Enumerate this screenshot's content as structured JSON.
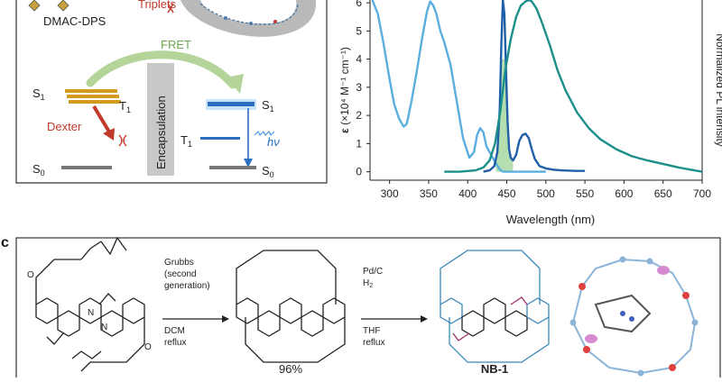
{
  "panel_a": {
    "compound_label": "DMAC-DPS",
    "triplets_label": "Triplets",
    "fret_label": "FRET",
    "dexter_label": "Dexter",
    "encapsulation_label": "Encapsulation",
    "hv_label": "hν",
    "levels": {
      "s1_left": "S",
      "s1_left_sub": "1",
      "t1_left": "T",
      "t1_left_sub": "1",
      "s0_left": "S",
      "s0_left_sub": "0",
      "s1_right": "S",
      "s1_right_sub": "1",
      "t1_right": "T",
      "t1_right_sub": "1",
      "s0_right": "S",
      "s0_right_sub": "0"
    }
  },
  "panel_b": {
    "chart_data": {
      "type": "line",
      "xlabel": "Wavelength (nm)",
      "ylabel_left": "ε (×10⁴ M⁻¹ cm⁻¹)",
      "ylabel_right": "Normalized PL intensity",
      "xlim": [
        275,
        700
      ],
      "ylim": [
        -0.3,
        6.1
      ],
      "x_ticks": [
        300,
        350,
        400,
        450,
        500,
        550,
        600,
        650,
        700
      ],
      "y_ticks": [
        0,
        1,
        2,
        3,
        4,
        5,
        6
      ],
      "series": [
        {
          "color": "#5aaee0",
          "x": [
            278,
            285,
            292,
            300,
            306,
            312,
            318,
            322,
            328,
            335,
            342,
            348,
            352,
            356,
            360,
            365,
            370,
            378,
            386,
            394,
            402,
            408,
            412,
            416,
            420,
            424,
            430,
            436,
            442,
            446,
            450,
            456,
            462,
            470,
            480,
            490,
            500
          ],
          "y": [
            6.1,
            5.6,
            4.6,
            3.3,
            2.4,
            1.9,
            1.6,
            1.7,
            2.5,
            3.6,
            4.8,
            5.7,
            6.05,
            5.9,
            5.6,
            5.0,
            4.6,
            3.8,
            2.5,
            1.2,
            0.5,
            0.7,
            1.3,
            1.55,
            1.4,
            0.9,
            0.6,
            0.3,
            0.05,
            0.0,
            0.0,
            0.0,
            0.0,
            0.0,
            0.0,
            0.0,
            0.0
          ]
        },
        {
          "color": "#1f5fa8",
          "x": [
            420,
            428,
            434,
            438,
            441,
            443,
            445,
            447,
            449,
            451,
            453,
            455,
            458,
            462,
            466,
            470,
            474,
            478,
            482,
            486,
            492,
            500,
            510,
            520,
            530,
            540,
            550
          ],
          "y": [
            0.0,
            0.05,
            0.2,
            0.7,
            2.2,
            4.5,
            6.1,
            5.6,
            3.6,
            1.8,
            0.8,
            0.5,
            0.4,
            0.6,
            1.1,
            1.3,
            1.35,
            1.2,
            0.8,
            0.45,
            0.2,
            0.12,
            0.07,
            0.05,
            0.04,
            0.03,
            0.03
          ]
        },
        {
          "color": "#1b8f8a",
          "x": [
            370,
            390,
            410,
            420,
            428,
            435,
            442,
            448,
            455,
            462,
            468,
            474,
            478,
            482,
            488,
            495,
            505,
            515,
            525,
            540,
            555,
            570,
            590,
            610,
            630,
            650,
            670,
            690,
            700
          ],
          "y": [
            0.0,
            0.0,
            0.05,
            0.15,
            0.4,
            1.0,
            2.2,
            3.6,
            4.7,
            5.5,
            5.9,
            6.05,
            6.1,
            6.05,
            5.8,
            5.3,
            4.5,
            3.6,
            2.9,
            2.1,
            1.55,
            1.15,
            0.8,
            0.55,
            0.4,
            0.28,
            0.15,
            0.05,
            0.0
          ]
        }
      ],
      "overlap_fill_color": "#a8d8a0"
    }
  },
  "panel_c": {
    "label": "c",
    "step1_reagent_lines": [
      "Grubbs",
      "(second",
      "generation)",
      "DCM",
      "reflux"
    ],
    "step2_reagent_lines": [
      "Pd/C",
      "H",
      "THF",
      "reflux"
    ],
    "step2_h2_sub": "2",
    "yield_1": "96%",
    "product_name": "NB-1"
  }
}
